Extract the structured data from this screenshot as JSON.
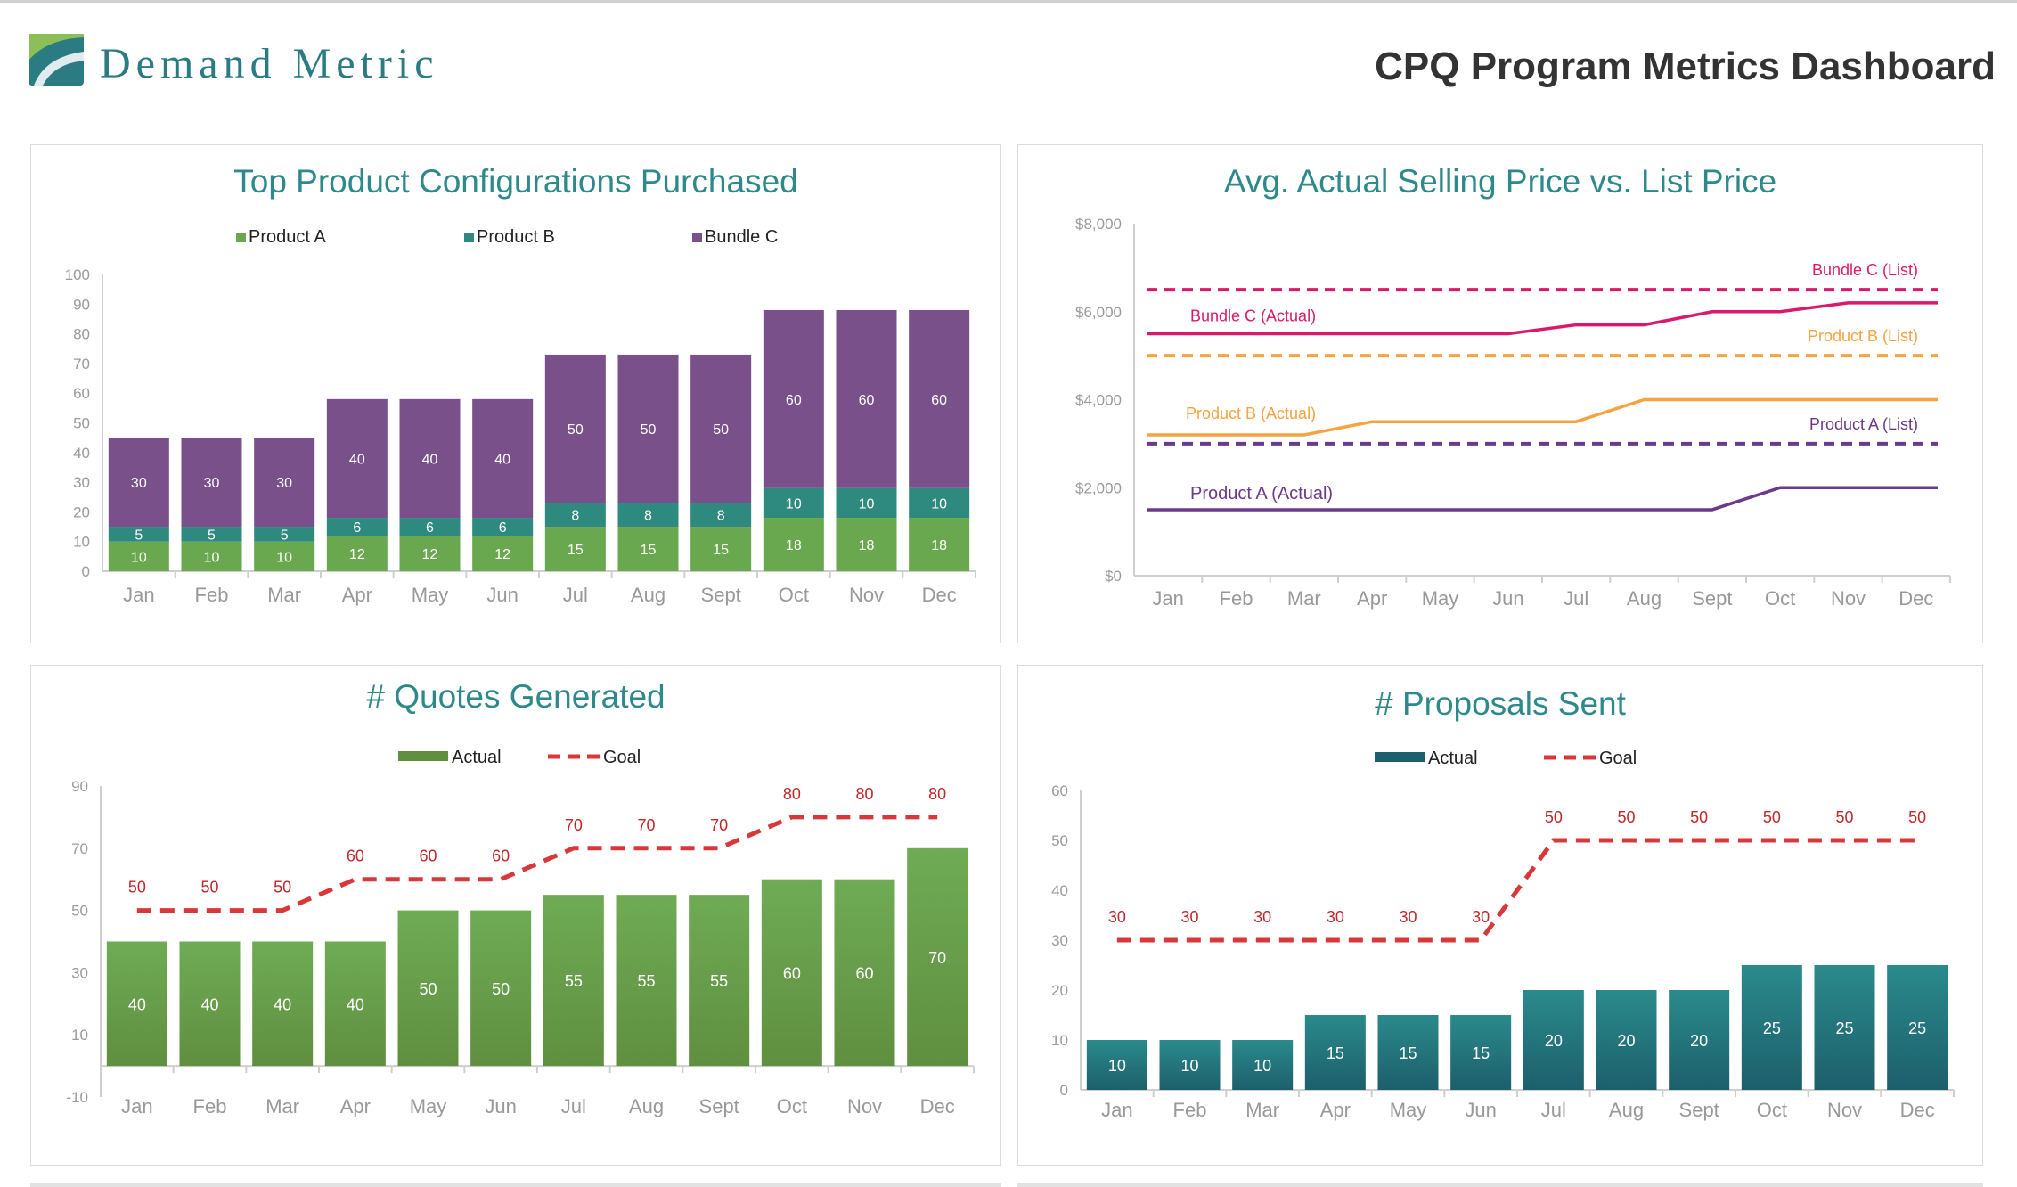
{
  "header": {
    "brand": "Demand Metric",
    "title": "CPQ Program Metrics Dashboard"
  },
  "colors": {
    "product_a": "#6aa84f",
    "product_b": "#2e8a7e",
    "bundle_c": "#7a508a",
    "bundle_c_line": "#d91a6a",
    "product_b_line": "#f6a341",
    "product_a_line": "#6b3a8a",
    "goal": "#d9383a",
    "quotes_bar": "#6fa84f",
    "proposals_bar": "#1f6b78",
    "title_teal": "#2e8a8a"
  },
  "chart_data": [
    {
      "id": "configs",
      "type": "bar",
      "stacked": true,
      "title": "Top Product Configurations Purchased",
      "categories": [
        "Jan",
        "Feb",
        "Mar",
        "Apr",
        "May",
        "Jun",
        "Jul",
        "Aug",
        "Sept",
        "Oct",
        "Nov",
        "Dec"
      ],
      "series": [
        {
          "name": "Product A",
          "values": [
            10,
            10,
            10,
            12,
            12,
            12,
            15,
            15,
            15,
            18,
            18,
            18
          ]
        },
        {
          "name": "Product B",
          "values": [
            5,
            5,
            5,
            6,
            6,
            6,
            8,
            8,
            8,
            10,
            10,
            10
          ]
        },
        {
          "name": "Bundle C",
          "values": [
            30,
            30,
            30,
            40,
            40,
            40,
            50,
            50,
            50,
            60,
            60,
            60
          ]
        }
      ],
      "ylim": [
        0,
        100
      ],
      "yticks": [
        0,
        10,
        20,
        30,
        40,
        50,
        60,
        70,
        80,
        90,
        100
      ],
      "legend": "top"
    },
    {
      "id": "price",
      "type": "line",
      "title": "Avg. Actual Selling Price vs. List Price",
      "categories": [
        "Jan",
        "Feb",
        "Mar",
        "Apr",
        "May",
        "Jun",
        "Jul",
        "Aug",
        "Sept",
        "Oct",
        "Nov",
        "Dec"
      ],
      "series": [
        {
          "name": "Bundle C (List)",
          "values": [
            6500,
            6500,
            6500,
            6500,
            6500,
            6500,
            6500,
            6500,
            6500,
            6500,
            6500,
            6500
          ],
          "dashed": true
        },
        {
          "name": "Bundle C (Actual)",
          "values": [
            5500,
            5500,
            5500,
            5500,
            5500,
            5500,
            5700,
            5700,
            6000,
            6000,
            6200,
            6200
          ],
          "dashed": false
        },
        {
          "name": "Product B (List)",
          "values": [
            5000,
            5000,
            5000,
            5000,
            5000,
            5000,
            5000,
            5000,
            5000,
            5000,
            5000,
            5000
          ],
          "dashed": true
        },
        {
          "name": "Product B (Actual)",
          "values": [
            3200,
            3200,
            3200,
            3500,
            3500,
            3500,
            3500,
            4000,
            4000,
            4000,
            4000,
            4000
          ],
          "dashed": false
        },
        {
          "name": "Product A (List)",
          "values": [
            3000,
            3000,
            3000,
            3000,
            3000,
            3000,
            3000,
            3000,
            3000,
            3000,
            3000,
            3000
          ],
          "dashed": true
        },
        {
          "name": "Product A (Actual)",
          "values": [
            1500,
            1500,
            1500,
            1500,
            1500,
            1500,
            1500,
            1500,
            1500,
            2000,
            2000,
            2000
          ],
          "dashed": false
        }
      ],
      "ylim": [
        0,
        8000
      ],
      "yticks": [
        "$0",
        "$2,000",
        "$4,000",
        "$6,000",
        "$8,000"
      ],
      "ytick_values": [
        0,
        2000,
        4000,
        6000,
        8000
      ],
      "legend": "inline labels"
    },
    {
      "id": "quotes",
      "type": "bar",
      "title": "# Quotes Generated",
      "categories": [
        "Jan",
        "Feb",
        "Mar",
        "Apr",
        "May",
        "Jun",
        "Jul",
        "Aug",
        "Sept",
        "Oct",
        "Nov",
        "Dec"
      ],
      "series": [
        {
          "name": "Actual",
          "values": [
            40,
            40,
            40,
            40,
            50,
            50,
            55,
            55,
            55,
            60,
            60,
            70
          ]
        },
        {
          "name": "Goal",
          "values": [
            50,
            50,
            50,
            60,
            60,
            60,
            70,
            70,
            70,
            80,
            80,
            80
          ],
          "line": true
        }
      ],
      "ylim": [
        -10,
        90
      ],
      "yticks": [
        -10,
        10,
        30,
        50,
        70,
        90
      ],
      "legend": "top"
    },
    {
      "id": "proposals",
      "type": "bar",
      "title": "# Proposals Sent",
      "categories": [
        "Jan",
        "Feb",
        "Mar",
        "Apr",
        "May",
        "Jun",
        "Jul",
        "Aug",
        "Sept",
        "Oct",
        "Nov",
        "Dec"
      ],
      "series": [
        {
          "name": "Actual",
          "values": [
            10,
            10,
            10,
            15,
            15,
            15,
            20,
            20,
            20,
            25,
            25,
            25
          ]
        },
        {
          "name": "Goal",
          "values": [
            30,
            30,
            30,
            30,
            30,
            30,
            50,
            50,
            50,
            50,
            50,
            50
          ],
          "line": true
        }
      ],
      "ylim": [
        0,
        60
      ],
      "yticks": [
        0,
        10,
        20,
        30,
        40,
        50,
        60
      ],
      "legend": "top"
    }
  ]
}
